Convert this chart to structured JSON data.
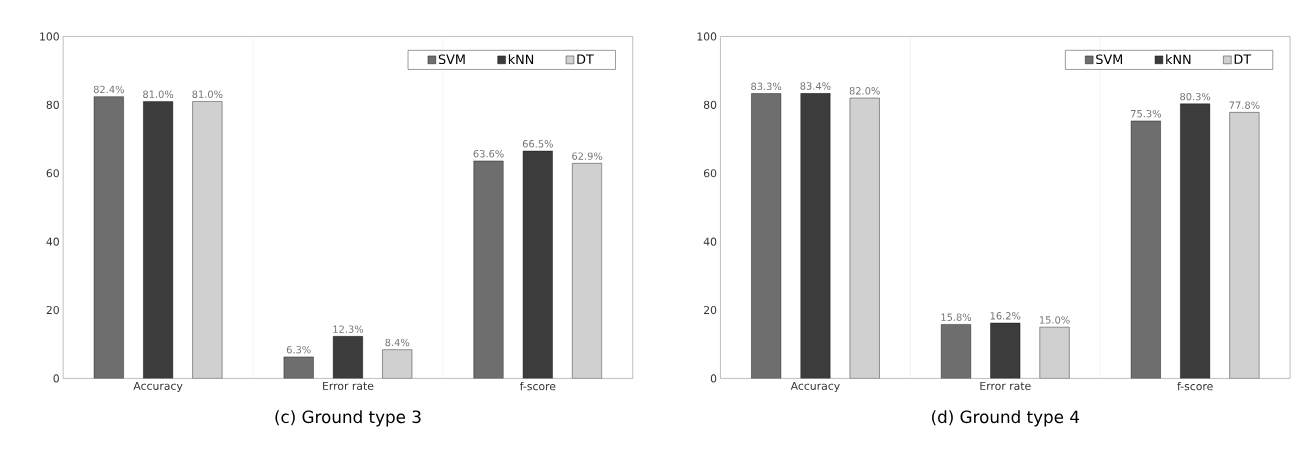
{
  "chart_data": [
    {
      "type": "bar",
      "title": "(c) Ground type 3",
      "categories": [
        "Accuracy",
        "Error rate",
        "f-score"
      ],
      "series": [
        {
          "name": "SVM",
          "color": "#6e6e6e",
          "values": [
            82.4,
            6.3,
            63.6
          ],
          "value_labels": [
            "82.4%",
            "6.3%",
            "63.6%"
          ]
        },
        {
          "name": "kNN",
          "color": "#3c3c3c",
          "values": [
            81.0,
            12.3,
            66.5
          ],
          "value_labels": [
            "81.0%",
            "12.3%",
            "66.5%"
          ]
        },
        {
          "name": "DT",
          "color": "#d0d0d0",
          "values": [
            81.0,
            8.4,
            62.9
          ],
          "value_labels": [
            "81.0%",
            "8.4%",
            "62.9%"
          ]
        }
      ],
      "ylim": [
        0,
        100
      ],
      "yticks": [
        0,
        20,
        40,
        60,
        80,
        100
      ],
      "legend": "top right",
      "grid": "x"
    },
    {
      "type": "bar",
      "title": "(d) Ground type 4",
      "categories": [
        "Accuracy",
        "Error rate",
        "f-score"
      ],
      "series": [
        {
          "name": "SVM",
          "color": "#6e6e6e",
          "values": [
            83.3,
            15.8,
            75.3
          ],
          "value_labels": [
            "83.3%",
            "15.8%",
            "75.3%"
          ]
        },
        {
          "name": "kNN",
          "color": "#3c3c3c",
          "values": [
            83.4,
            16.2,
            80.3
          ],
          "value_labels": [
            "83.4%",
            "16.2%",
            "80.3%"
          ]
        },
        {
          "name": "DT",
          "color": "#d0d0d0",
          "values": [
            82.0,
            15.0,
            77.8
          ],
          "value_labels": [
            "82.0%",
            "15.0%",
            "77.8%"
          ]
        }
      ],
      "ylim": [
        0,
        100
      ],
      "yticks": [
        0,
        20,
        40,
        60,
        80,
        100
      ],
      "legend": "top right",
      "grid": "x"
    }
  ]
}
